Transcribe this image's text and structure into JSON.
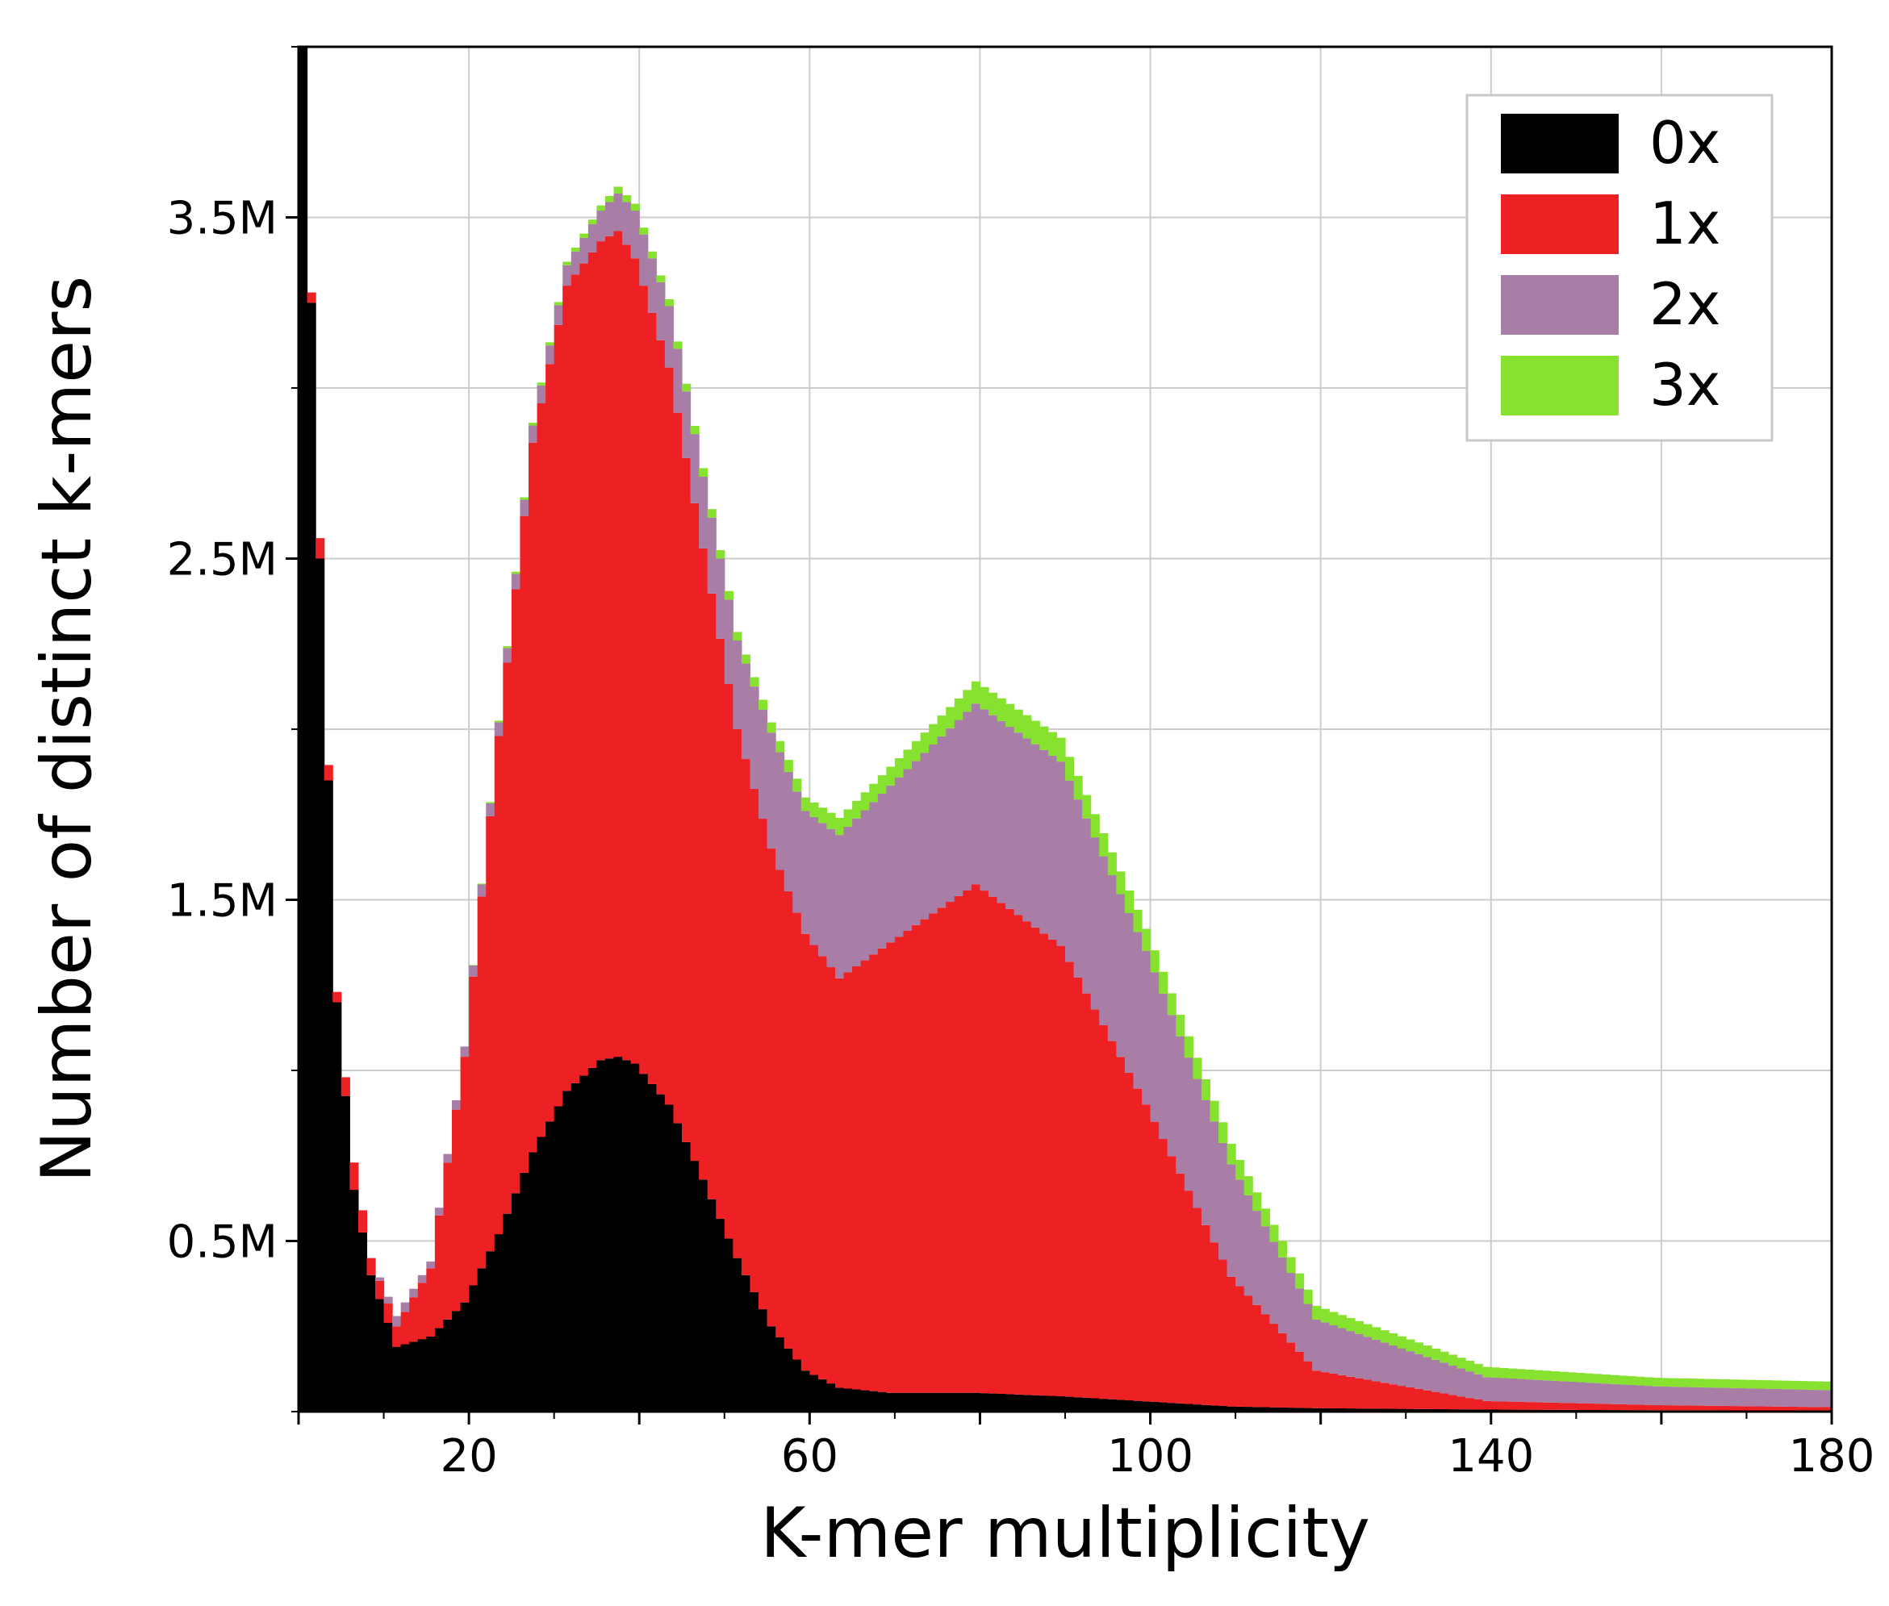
{
  "chart_data": {
    "type": "area",
    "subtype": "stacked-histogram",
    "xlabel": "K-mer multiplicity",
    "ylabel": "Number of distinct k-mers",
    "xlim": [
      0,
      180
    ],
    "ylim": [
      0,
      4000000
    ],
    "x_ticks": [
      20,
      60,
      100,
      140,
      180
    ],
    "x_tick_labels": [
      "20",
      "60",
      "100",
      "140",
      "180"
    ],
    "y_ticks": [
      500000,
      1500000,
      2500000,
      3500000
    ],
    "y_tick_labels": [
      "0.5M",
      "1.5M",
      "2.5M",
      "3.5M"
    ],
    "grid": true,
    "legend_position": "top-right",
    "colors": {
      "0x": "#000000",
      "1x": "#ed2024",
      "2x": "#a87ea6",
      "3x": "#86e22f"
    },
    "series": [
      {
        "name": "0x",
        "x": [
          1,
          3,
          5,
          7,
          9,
          12,
          16,
          20,
          24,
          28,
          32,
          36,
          38,
          40,
          44,
          48,
          52,
          56,
          60,
          64,
          70,
          80,
          90,
          100,
          110,
          120,
          140,
          160,
          180
        ],
        "values": [
          4000000,
          2500000,
          1200000,
          650000,
          400000,
          190000,
          220000,
          320000,
          520000,
          760000,
          940000,
          1030000,
          1040000,
          1020000,
          900000,
          680000,
          450000,
          250000,
          120000,
          70000,
          55000,
          55000,
          45000,
          30000,
          15000,
          10000,
          6000,
          4000,
          3000
        ]
      },
      {
        "name": "1x",
        "x": [
          1,
          3,
          5,
          7,
          9,
          12,
          16,
          20,
          24,
          28,
          32,
          36,
          38,
          40,
          44,
          48,
          52,
          56,
          60,
          64,
          70,
          80,
          90,
          100,
          110,
          120,
          140,
          160,
          180
        ],
        "values": [
          0,
          60000,
          30000,
          80000,
          50000,
          60000,
          200000,
          720000,
          1460000,
          2080000,
          2360000,
          2400000,
          2420000,
          2360000,
          2160000,
          1850000,
          1550000,
          1400000,
          1280000,
          1200000,
          1320000,
          1490000,
          1320000,
          870000,
          380000,
          110000,
          25000,
          15000,
          10000
        ]
      },
      {
        "name": "2x",
        "x": [
          1,
          3,
          5,
          7,
          9,
          12,
          16,
          20,
          24,
          28,
          32,
          36,
          38,
          40,
          44,
          48,
          52,
          56,
          60,
          64,
          70,
          80,
          90,
          100,
          110,
          120,
          140,
          160,
          180
        ],
        "values": [
          0,
          0,
          0,
          0,
          0,
          30000,
          20000,
          30000,
          40000,
          50000,
          60000,
          90000,
          110000,
          140000,
          180000,
          210000,
          260000,
          340000,
          360000,
          420000,
          460000,
          530000,
          540000,
          450000,
          330000,
          150000,
          70000,
          55000,
          50000
        ]
      },
      {
        "name": "3x",
        "x": [
          1,
          3,
          5,
          7,
          9,
          12,
          16,
          20,
          24,
          28,
          32,
          36,
          38,
          40,
          44,
          48,
          52,
          56,
          60,
          64,
          70,
          80,
          90,
          100,
          110,
          120,
          140,
          160,
          180
        ],
        "values": [
          0,
          0,
          0,
          0,
          0,
          0,
          0,
          0,
          5000,
          8000,
          10000,
          15000,
          20000,
          20000,
          20000,
          25000,
          25000,
          30000,
          40000,
          50000,
          55000,
          65000,
          70000,
          65000,
          60000,
          40000,
          30000,
          25000,
          25000
        ]
      }
    ]
  }
}
